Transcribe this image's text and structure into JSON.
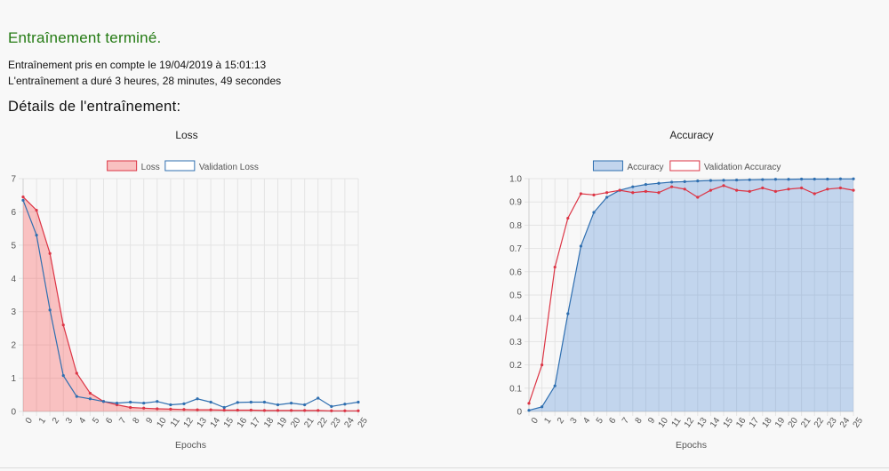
{
  "status": {
    "title": "Entraînement terminé."
  },
  "info": {
    "line1": "Entraînement pris en compte le 19/04/2019 à 15:01:13",
    "line2": "L'entraînement a duré 3 heures, 28 minutes, 49 secondes"
  },
  "section_title": "Détails de l'entraînement:",
  "colors": {
    "red": "#dc3545",
    "blue": "#2f6fb0",
    "red_fill": "rgba(255,0,0,0.22)",
    "blue_fill": "rgba(80,140,215,0.32)",
    "status_green": "#237a12"
  },
  "chart_data": [
    {
      "type": "line",
      "title": "Loss",
      "xlabel": "Epochs",
      "ylabel": "",
      "ylim": [
        0,
        7
      ],
      "yticks": [
        "0",
        "1",
        "2",
        "3",
        "4",
        "5",
        "6",
        "7"
      ],
      "x": [
        "0",
        "1",
        "2",
        "3",
        "4",
        "5",
        "6",
        "7",
        "8",
        "9",
        "10",
        "11",
        "12",
        "13",
        "14",
        "15",
        "16",
        "17",
        "18",
        "19",
        "20",
        "21",
        "22",
        "23",
        "24",
        "25"
      ],
      "legend_position": "top",
      "grid": true,
      "series": [
        {
          "name": "Loss",
          "color": "#dc3545",
          "filled": true,
          "values": [
            6.45,
            6.05,
            4.75,
            2.6,
            1.15,
            0.55,
            0.3,
            0.2,
            0.12,
            0.1,
            0.08,
            0.07,
            0.06,
            0.05,
            0.05,
            0.04,
            0.04,
            0.04,
            0.03,
            0.03,
            0.03,
            0.03,
            0.03,
            0.02,
            0.02,
            0.02
          ]
        },
        {
          "name": "Validation Loss",
          "color": "#2f6fb0",
          "filled": false,
          "values": [
            6.35,
            5.3,
            3.05,
            1.08,
            0.45,
            0.38,
            0.3,
            0.25,
            0.28,
            0.25,
            0.3,
            0.2,
            0.23,
            0.38,
            0.28,
            0.12,
            0.27,
            0.28,
            0.28,
            0.2,
            0.25,
            0.2,
            0.4,
            0.15,
            0.22,
            0.28
          ]
        }
      ]
    },
    {
      "type": "line",
      "title": "Accuracy",
      "xlabel": "Epochs",
      "ylabel": "",
      "ylim": [
        0,
        1
      ],
      "yticks": [
        "0",
        "0.1",
        "0.2",
        "0.3",
        "0.4",
        "0.5",
        "0.6",
        "0.7",
        "0.8",
        "0.9",
        "1.0"
      ],
      "x": [
        "0",
        "1",
        "2",
        "3",
        "4",
        "5",
        "6",
        "7",
        "8",
        "9",
        "10",
        "11",
        "12",
        "13",
        "14",
        "15",
        "16",
        "17",
        "18",
        "19",
        "20",
        "21",
        "22",
        "23",
        "24",
        "25"
      ],
      "legend_position": "top",
      "grid": true,
      "series": [
        {
          "name": "Accuracy",
          "color": "#2f6fb0",
          "filled": true,
          "values": [
            0.005,
            0.02,
            0.11,
            0.42,
            0.71,
            0.855,
            0.92,
            0.95,
            0.965,
            0.975,
            0.98,
            0.985,
            0.987,
            0.99,
            0.992,
            0.993,
            0.994,
            0.995,
            0.996,
            0.997,
            0.997,
            0.998,
            0.998,
            0.998,
            0.999,
            0.999
          ]
        },
        {
          "name": "Validation Accuracy",
          "color": "#dc3545",
          "filled": false,
          "values": [
            0.035,
            0.2,
            0.62,
            0.83,
            0.935,
            0.93,
            0.94,
            0.95,
            0.94,
            0.945,
            0.94,
            0.965,
            0.955,
            0.92,
            0.95,
            0.97,
            0.95,
            0.945,
            0.96,
            0.945,
            0.955,
            0.96,
            0.935,
            0.955,
            0.96,
            0.95
          ]
        }
      ]
    }
  ]
}
